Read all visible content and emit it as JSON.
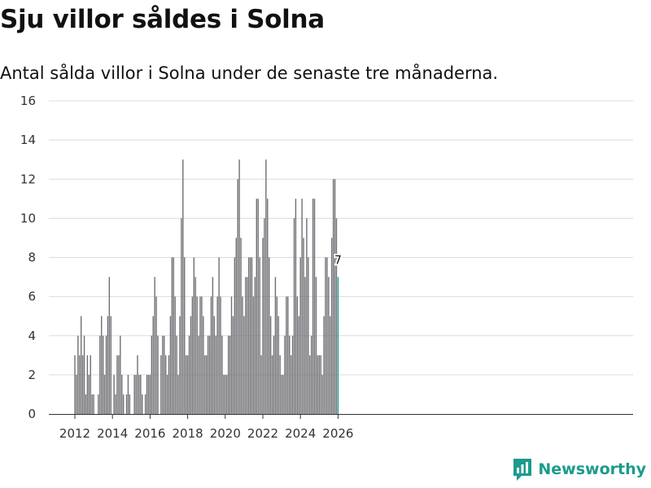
{
  "header": {
    "title": "Sju villor såldes i Solna",
    "subtitle": "Antal sålda villor i Solna under de senaste tre månaderna."
  },
  "brand": {
    "name": "Newsworthy"
  },
  "colors": {
    "bar": "#6f6e73",
    "highlight": "#1b9b8c",
    "grid": "#dcdcdc",
    "brand": "#1b9b8c"
  },
  "chart_data": {
    "type": "bar",
    "title": "Sju villor såldes i Solna",
    "subtitle": "Antal sålda villor i Solna under de senaste tre månaderna.",
    "xlabel": "",
    "ylabel": "",
    "ylim": [
      0,
      16
    ],
    "yticks": [
      0,
      2,
      4,
      6,
      8,
      10,
      12,
      14,
      16
    ],
    "xticks": [
      {
        "year": 2012,
        "label": "2012"
      },
      {
        "year": 2014,
        "label": "2014"
      },
      {
        "year": 2016,
        "label": "2016"
      },
      {
        "year": 2018,
        "label": "2018"
      },
      {
        "year": 2020,
        "label": "2020"
      },
      {
        "year": 2022,
        "label": "2022"
      },
      {
        "year": 2024,
        "label": "2024"
      },
      {
        "year": 2026,
        "label": "2026"
      }
    ],
    "x_start": "2012-01",
    "frequency": "monthly",
    "grid": true,
    "highlight_last": true,
    "last_label": "7",
    "values": [
      3,
      2,
      4,
      3,
      5,
      3,
      4,
      1,
      3,
      2,
      3,
      1,
      1,
      0,
      0,
      1,
      4,
      5,
      4,
      2,
      4,
      5,
      7,
      5,
      0,
      2,
      1,
      3,
      3,
      4,
      2,
      1,
      0,
      1,
      2,
      1,
      0,
      0,
      2,
      2,
      3,
      2,
      2,
      1,
      0,
      1,
      2,
      2,
      2,
      4,
      5,
      7,
      6,
      4,
      0,
      3,
      4,
      4,
      3,
      2,
      3,
      5,
      8,
      8,
      6,
      4,
      2,
      5,
      10,
      13,
      8,
      3,
      3,
      4,
      5,
      6,
      8,
      7,
      6,
      4,
      6,
      6,
      5,
      3,
      3,
      4,
      4,
      6,
      7,
      5,
      4,
      6,
      8,
      6,
      4,
      2,
      2,
      2,
      4,
      4,
      6,
      5,
      8,
      9,
      12,
      13,
      9,
      6,
      5,
      7,
      7,
      8,
      8,
      8,
      6,
      7,
      11,
      11,
      8,
      3,
      9,
      10,
      13,
      11,
      8,
      5,
      3,
      4,
      7,
      6,
      5,
      3,
      2,
      2,
      4,
      6,
      6,
      4,
      3,
      4,
      10,
      11,
      6,
      5,
      8,
      11,
      9,
      7,
      10,
      8,
      3,
      4,
      11,
      11,
      7,
      3,
      3,
      3,
      2,
      5,
      8,
      8,
      7,
      5,
      9,
      12,
      12,
      10,
      7
    ]
  }
}
